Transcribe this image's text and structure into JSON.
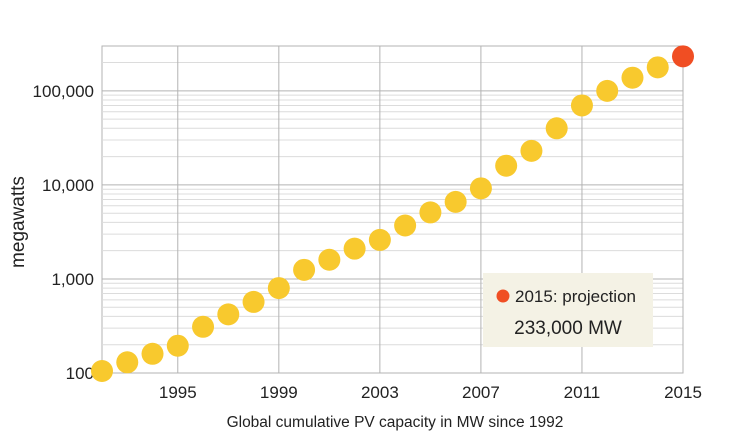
{
  "chart_data": {
    "type": "scatter",
    "title": "",
    "xlabel": "Global cumulative PV capacity in MW since 1992",
    "ylabel": "megawatts",
    "y_scale": "log",
    "xlim": [
      1992,
      2015
    ],
    "ylim": [
      100,
      300000
    ],
    "x_ticks": [
      1995,
      1999,
      2003,
      2007,
      2011,
      2015
    ],
    "x_tick_labels": [
      "1995",
      "1999",
      "2003",
      "2007",
      "2011",
      "2015"
    ],
    "y_ticks": [
      100,
      1000,
      10000,
      100000
    ],
    "y_tick_labels": [
      "100",
      "1,000",
      "10,000",
      "100,000"
    ],
    "grid": true,
    "series": [
      {
        "color": "#f8c92e",
        "x": [
          1992,
          1993,
          1994,
          1995,
          1996,
          1997,
          1998,
          1999,
          2000,
          2001,
          2002,
          2003,
          2004,
          2005,
          2006,
          2007,
          2008,
          2009,
          2010,
          2011,
          2012,
          2013,
          2014
        ],
        "values": [
          105,
          130,
          160,
          195,
          310,
          420,
          570,
          800,
          1250,
          1600,
          2100,
          2600,
          3700,
          5100,
          6600,
          9200,
          16000,
          23000,
          40000,
          70000,
          100000,
          138000,
          178000
        ]
      },
      {
        "color": "#f04e23",
        "x": [
          2015
        ],
        "values": [
          233000
        ]
      }
    ],
    "annotation": {
      "title": "2015: projection",
      "value": "233,000 MW",
      "marker_color": "#f04e23"
    }
  }
}
